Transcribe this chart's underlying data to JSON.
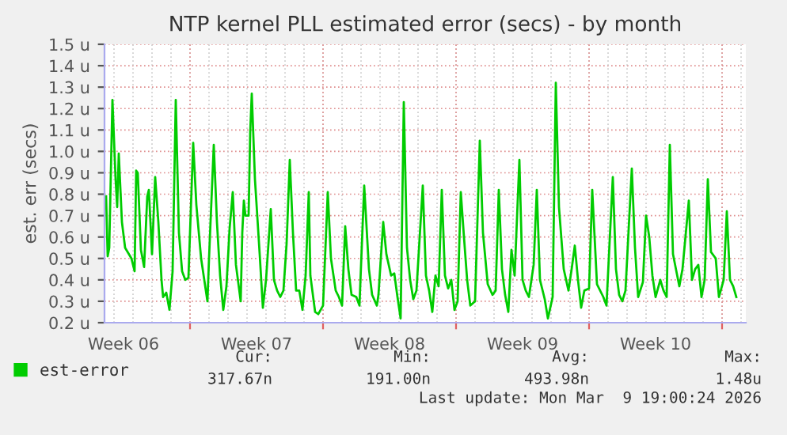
{
  "chart_data": {
    "type": "line",
    "title": "NTP kernel PLL estimated error (secs) - by month",
    "ylabel": "est. err (secs)",
    "x": [
      "2026-02-04T14:00",
      "2026-02-04T16:00",
      "2026-02-04T18:00",
      "2026-02-04T22:00",
      "2026-02-05T02:00",
      "2026-02-05T04:00",
      "2026-02-05T06:00",
      "2026-02-05T10:00",
      "2026-02-05T14:00",
      "2026-02-05T22:00",
      "2026-02-06T02:00",
      "2026-02-06T04:00",
      "2026-02-06T06:00",
      "2026-02-06T10:00",
      "2026-02-06T14:00",
      "2026-02-06T18:00",
      "2026-02-06T20:00",
      "2026-02-07T00:00",
      "2026-02-07T04:00",
      "2026-02-07T08:00",
      "2026-02-07T12:00",
      "2026-02-07T14:00",
      "2026-02-07T18:00",
      "2026-02-07T22:00",
      "2026-02-08T02:00",
      "2026-02-08T06:00",
      "2026-02-08T10:00",
      "2026-02-08T14:00",
      "2026-02-08T18:00",
      "2026-02-08T22:00",
      "2026-02-09T04:00",
      "2026-02-09T08:00",
      "2026-02-09T14:00",
      "2026-02-09T22:00",
      "2026-02-10T00:00",
      "2026-02-10T06:00",
      "2026-02-10T10:00",
      "2026-02-10T14:00",
      "2026-02-10T18:00",
      "2026-02-10T22:00",
      "2026-02-11T02:00",
      "2026-02-11T06:00",
      "2026-02-11T10:00",
      "2026-02-11T16:00",
      "2026-02-11T18:00",
      "2026-02-11T20:00",
      "2026-02-11T22:00",
      "2026-02-12T02:00",
      "2026-02-12T04:00",
      "2026-02-12T06:00",
      "2026-02-12T10:00",
      "2026-02-12T16:00",
      "2026-02-12T20:00",
      "2026-02-13T00:00",
      "2026-02-13T06:00",
      "2026-02-13T10:00",
      "2026-02-13T14:00",
      "2026-02-13T18:00",
      "2026-02-13T22:00",
      "2026-02-14T02:00",
      "2026-02-14T06:00",
      "2026-02-14T10:00",
      "2026-02-14T14:00",
      "2026-02-14T18:00",
      "2026-02-14T22:00",
      "2026-02-15T02:00",
      "2026-02-15T06:00",
      "2026-02-15T08:00",
      "2026-02-15T14:00",
      "2026-02-15T18:00",
      "2026-02-16T00:00",
      "2026-02-16T06:00",
      "2026-02-16T10:00",
      "2026-02-16T16:00",
      "2026-02-16T20:00",
      "2026-02-17T00:00",
      "2026-02-17T04:00",
      "2026-02-17T08:00",
      "2026-02-17T12:00",
      "2026-02-17T18:00",
      "2026-02-17T22:00",
      "2026-02-18T04:00",
      "2026-02-18T10:00",
      "2026-02-18T14:00",
      "2026-02-18T20:00",
      "2026-02-18T22:00",
      "2026-02-19T04:00",
      "2026-02-19T08:00",
      "2026-02-19T14:00",
      "2026-02-19T18:00",
      "2026-02-19T22:00",
      "2026-02-20T02:00",
      "2026-02-20T06:00",
      "2026-02-20T10:00",
      "2026-02-20T14:00",
      "2026-02-20T18:00",
      "2026-02-20T22:00",
      "2026-02-21T06:00",
      "2026-02-21T10:00",
      "2026-02-21T14:00",
      "2026-02-21T18:00",
      "2026-02-21T22:00",
      "2026-02-22T02:00",
      "2026-02-22T06:00",
      "2026-02-22T10:00",
      "2026-02-22T14:00",
      "2026-02-22T18:00",
      "2026-02-22T22:00",
      "2026-02-23T02:00",
      "2026-02-23T06:00",
      "2026-02-23T10:00",
      "2026-02-23T14:00",
      "2026-02-23T18:00",
      "2026-02-24T00:00",
      "2026-02-24T06:00",
      "2026-02-24T10:00",
      "2026-02-24T16:00",
      "2026-02-24T22:00",
      "2026-02-25T02:00",
      "2026-02-25T06:00",
      "2026-02-25T10:00",
      "2026-02-25T14:00",
      "2026-02-25T18:00",
      "2026-02-25T22:00",
      "2026-02-26T02:00",
      "2026-02-26T08:00",
      "2026-02-26T12:00",
      "2026-02-26T16:00",
      "2026-02-26T20:00",
      "2026-02-27T02:00",
      "2026-02-27T06:00",
      "2026-02-27T10:00",
      "2026-02-27T16:00",
      "2026-02-27T20:00",
      "2026-02-28T02:00",
      "2026-02-28T06:00",
      "2026-02-28T10:00",
      "2026-02-28T16:00",
      "2026-02-28T22:00",
      "2026-03-01T02:00",
      "2026-03-01T06:00",
      "2026-03-01T10:00",
      "2026-03-01T14:00",
      "2026-03-01T18:00",
      "2026-03-02T00:00",
      "2026-03-02T04:00",
      "2026-03-02T10:00",
      "2026-03-02T18:00",
      "2026-03-02T22:00",
      "2026-03-03T06:00",
      "2026-03-03T10:00",
      "2026-03-03T14:00",
      "2026-03-03T18:00",
      "2026-03-03T22:00",
      "2026-03-04T06:00",
      "2026-03-04T10:00",
      "2026-03-04T14:00",
      "2026-03-04T20:00",
      "2026-03-05T00:00",
      "2026-03-05T04:00",
      "2026-03-05T08:00",
      "2026-03-05T12:00",
      "2026-03-05T18:00",
      "2026-03-05T22:00",
      "2026-03-06T02:00",
      "2026-03-06T06:00",
      "2026-03-06T10:00",
      "2026-03-06T18:00",
      "2026-03-06T22:00",
      "2026-03-07T06:00",
      "2026-03-07T10:00",
      "2026-03-07T14:00",
      "2026-03-07T18:00",
      "2026-03-07T22:00",
      "2026-03-08T02:00",
      "2026-03-08T06:00",
      "2026-03-08T10:00",
      "2026-03-08T16:00",
      "2026-03-08T20:00",
      "2026-03-09T02:00",
      "2026-03-09T06:00",
      "2026-03-09T10:00",
      "2026-03-09T14:00",
      "2026-03-09T18:00"
    ],
    "series": [
      {
        "name": "est-error",
        "color": "#00cc00",
        "values": [
          0.79,
          0.51,
          0.55,
          1.24,
          0.87,
          0.74,
          0.99,
          0.67,
          0.55,
          0.5,
          0.44,
          0.91,
          0.9,
          0.54,
          0.46,
          0.79,
          0.82,
          0.52,
          0.88,
          0.67,
          0.4,
          0.32,
          0.34,
          0.26,
          0.44,
          1.24,
          0.62,
          0.44,
          0.4,
          0.41,
          1.04,
          0.75,
          0.5,
          0.3,
          0.5,
          1.03,
          0.67,
          0.42,
          0.26,
          0.37,
          0.64,
          0.81,
          0.47,
          0.3,
          0.62,
          0.77,
          0.7,
          0.7,
          1.09,
          1.27,
          0.87,
          0.52,
          0.27,
          0.4,
          0.73,
          0.4,
          0.35,
          0.32,
          0.35,
          0.57,
          0.96,
          0.62,
          0.35,
          0.35,
          0.26,
          0.42,
          0.81,
          0.42,
          0.25,
          0.24,
          0.28,
          0.81,
          0.5,
          0.35,
          0.32,
          0.28,
          0.65,
          0.45,
          0.33,
          0.32,
          0.28,
          0.84,
          0.45,
          0.33,
          0.28,
          0.33,
          0.67,
          0.52,
          0.42,
          0.43,
          0.32,
          0.22,
          1.23,
          0.55,
          0.4,
          0.31,
          0.35,
          0.84,
          0.42,
          0.35,
          0.25,
          0.42,
          0.37,
          0.82,
          0.42,
          0.36,
          0.4,
          0.26,
          0.3,
          0.81,
          0.6,
          0.4,
          0.28,
          0.3,
          1.05,
          0.62,
          0.38,
          0.33,
          0.35,
          0.82,
          0.45,
          0.33,
          0.25,
          0.54,
          0.42,
          0.96,
          0.4,
          0.35,
          0.32,
          0.47,
          0.82,
          0.4,
          0.31,
          0.22,
          0.32,
          1.32,
          0.74,
          0.45,
          0.35,
          0.45,
          0.56,
          0.4,
          0.27,
          0.35,
          0.36,
          0.82,
          0.38,
          0.32,
          0.28,
          0.88,
          0.45,
          0.33,
          0.3,
          0.35,
          0.92,
          0.55,
          0.32,
          0.39,
          0.7,
          0.6,
          0.42,
          0.32,
          0.4,
          0.35,
          0.32,
          1.03,
          0.52,
          0.37,
          0.45,
          0.77,
          0.4,
          0.45,
          0.47,
          0.32,
          0.4,
          0.87,
          0.53,
          0.5,
          0.32,
          0.4,
          0.72,
          0.4,
          0.37,
          0.32
        ]
      }
    ],
    "xlim": [
      "2026-02-04T12:00",
      "2026-03-10T06:00"
    ],
    "xticks": [
      {
        "value": "2026-02-05T12:00",
        "label": "Week 06"
      },
      {
        "value": "2026-02-09",
        "label": null
      },
      {
        "value": "2026-02-12T12:00",
        "label": "Week 07"
      },
      {
        "value": "2026-02-16",
        "label": null
      },
      {
        "value": "2026-02-19T12:00",
        "label": "Week 08"
      },
      {
        "value": "2026-02-23",
        "label": null
      },
      {
        "value": "2026-02-26T12:00",
        "label": "Week 09"
      },
      {
        "value": "2026-03-02",
        "label": null
      },
      {
        "value": "2026-03-05T12:00",
        "label": "Week 10"
      },
      {
        "value": "2026-03-09",
        "label": null
      }
    ],
    "ylim": [
      0.2,
      1.5
    ],
    "yticks": [
      {
        "value": 0.2,
        "label": "0.2 u"
      },
      {
        "value": 0.3,
        "label": "0.3 u"
      },
      {
        "value": 0.4,
        "label": "0.4 u"
      },
      {
        "value": 0.5,
        "label": "0.5 u"
      },
      {
        "value": 0.6,
        "label": "0.6 u"
      },
      {
        "value": 0.7,
        "label": "0.7 u"
      },
      {
        "value": 0.8,
        "label": "0.8 u"
      },
      {
        "value": 0.9,
        "label": "0.9 u"
      },
      {
        "value": 1.0,
        "label": "1.0 u"
      },
      {
        "value": 1.1,
        "label": "1.1 u"
      },
      {
        "value": 1.2,
        "label": "1.2 u"
      },
      {
        "value": 1.3,
        "label": "1.3 u"
      },
      {
        "value": 1.4,
        "label": "1.4 u"
      },
      {
        "value": 1.5,
        "label": "1.5 u"
      }
    ],
    "grid": true,
    "legend": "bottom left",
    "annotations": [
      "Cur:",
      "Min:",
      "Avg:",
      "Max:",
      "317.67n",
      "191.00n",
      "493.98n",
      "1.48u",
      "Last update: Mon Mar  9 19:00:24 2026"
    ]
  }
}
